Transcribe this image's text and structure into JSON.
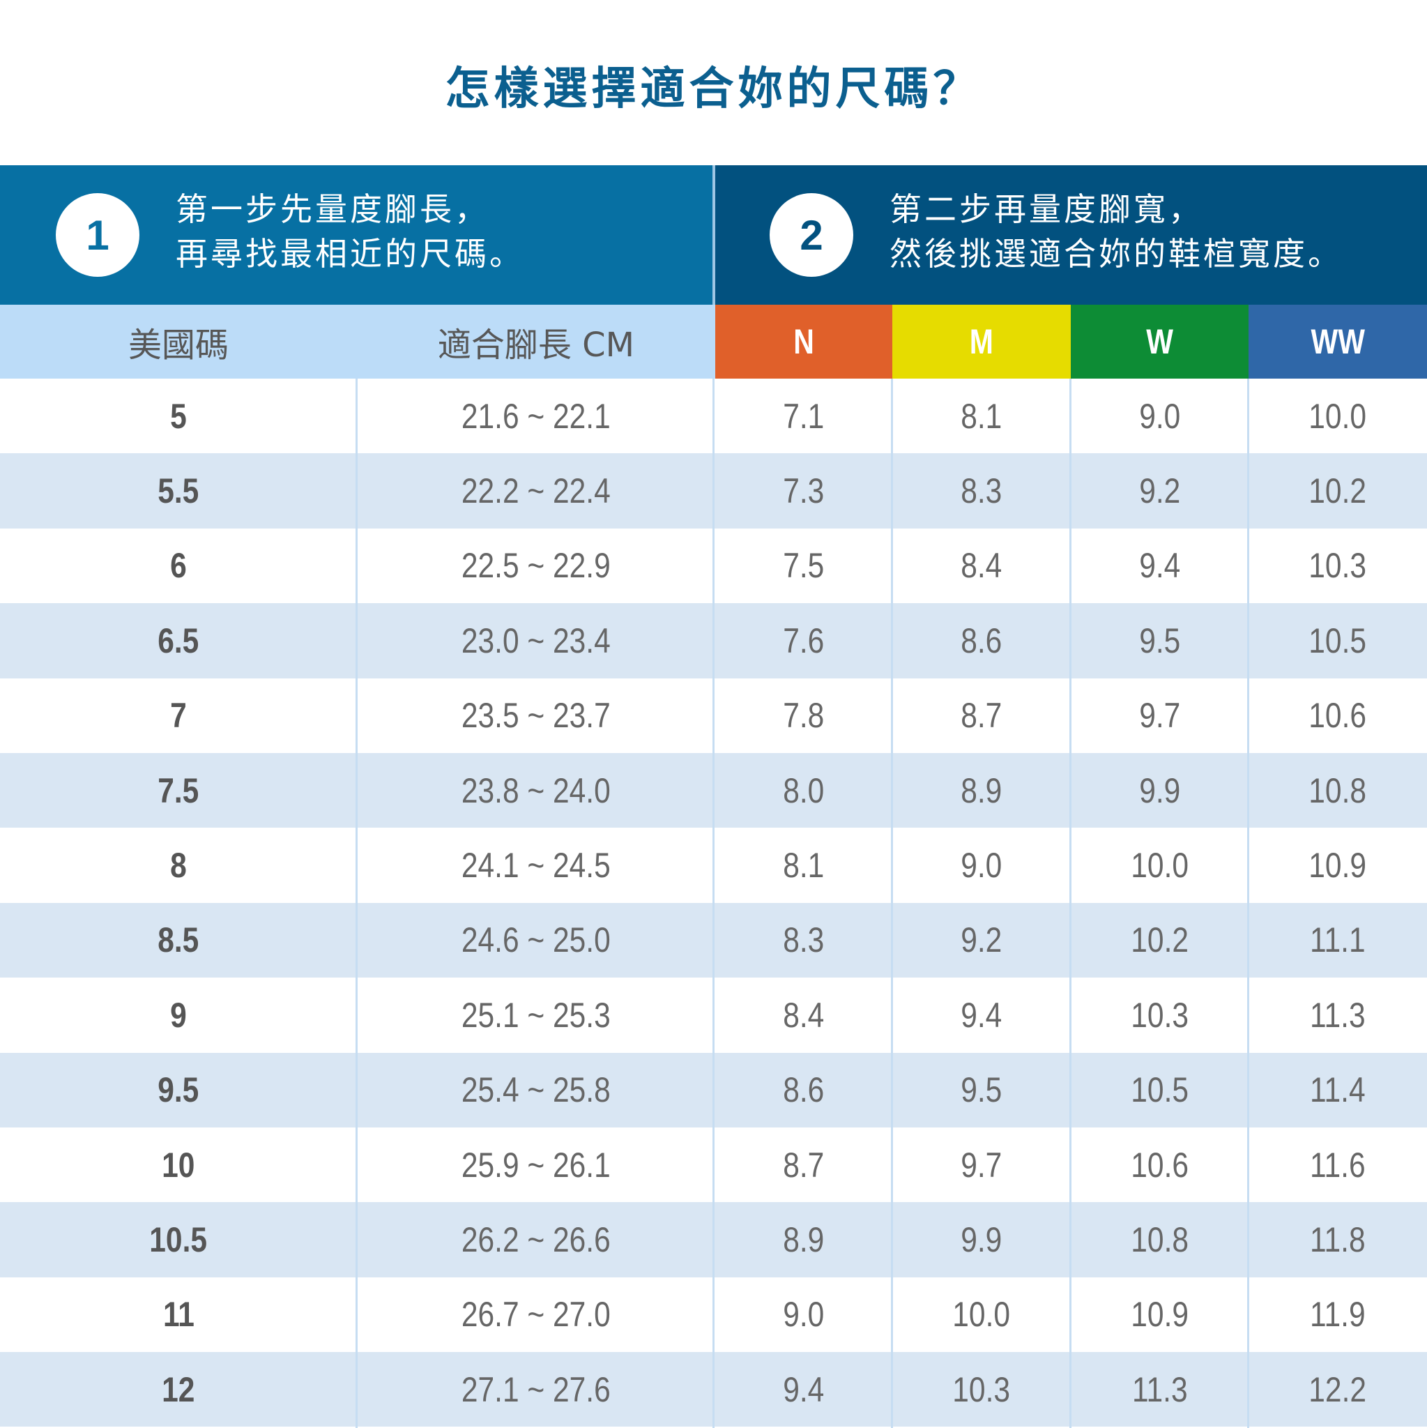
{
  "title": "怎樣選擇適合妳的尺碼？",
  "step1": {
    "number": "1",
    "line1": "第一步先量度腳長，",
    "line2": "再尋找最相近的尺碼。"
  },
  "step2": {
    "number": "2",
    "line1": "第二步再量度腳寬，",
    "line2": "然後挑選適合妳的鞋楦寬度。"
  },
  "headers": {
    "us_size": "美國碼",
    "foot_length": "適合腳長 CM",
    "widths": [
      {
        "label": "N",
        "color": "#e0602a"
      },
      {
        "label": "M",
        "color": "#e6dc00"
      },
      {
        "label": "W",
        "color": "#0d8c35"
      },
      {
        "label": "WW",
        "color": "#2f67a8"
      }
    ]
  },
  "rows": [
    {
      "size": "5",
      "length": "21.6 ~ 22.1",
      "n": "7.1",
      "m": "8.1",
      "w": "9.0",
      "ww": "10.0"
    },
    {
      "size": "5.5",
      "length": "22.2 ~ 22.4",
      "n": "7.3",
      "m": "8.3",
      "w": "9.2",
      "ww": "10.2"
    },
    {
      "size": "6",
      "length": "22.5 ~ 22.9",
      "n": "7.5",
      "m": "8.4",
      "w": "9.4",
      "ww": "10.3"
    },
    {
      "size": "6.5",
      "length": "23.0 ~ 23.4",
      "n": "7.6",
      "m": "8.6",
      "w": "9.5",
      "ww": "10.5"
    },
    {
      "size": "7",
      "length": "23.5 ~ 23.7",
      "n": "7.8",
      "m": "8.7",
      "w": "9.7",
      "ww": "10.6"
    },
    {
      "size": "7.5",
      "length": "23.8 ~ 24.0",
      "n": "8.0",
      "m": "8.9",
      "w": "9.9",
      "ww": "10.8"
    },
    {
      "size": "8",
      "length": "24.1 ~ 24.5",
      "n": "8.1",
      "m": "9.0",
      "w": "10.0",
      "ww": "10.9"
    },
    {
      "size": "8.5",
      "length": "24.6 ~ 25.0",
      "n": "8.3",
      "m": "9.2",
      "w": "10.2",
      "ww": "11.1"
    },
    {
      "size": "9",
      "length": "25.1 ~ 25.3",
      "n": "8.4",
      "m": "9.4",
      "w": "10.3",
      "ww": "11.3"
    },
    {
      "size": "9.5",
      "length": "25.4 ~ 25.8",
      "n": "8.6",
      "m": "9.5",
      "w": "10.5",
      "ww": "11.4"
    },
    {
      "size": "10",
      "length": "25.9 ~ 26.1",
      "n": "8.7",
      "m": "9.7",
      "w": "10.6",
      "ww": "11.6"
    },
    {
      "size": "10.5",
      "length": "26.2 ~ 26.6",
      "n": "8.9",
      "m": "9.9",
      "w": "10.8",
      "ww": "11.8"
    },
    {
      "size": "11",
      "length": "26.7 ~ 27.0",
      "n": "9.0",
      "m": "10.0",
      "w": "10.9",
      "ww": "11.9"
    },
    {
      "size": "12",
      "length": "27.1 ~ 27.6",
      "n": "9.4",
      "m": "10.3",
      "w": "11.3",
      "ww": "12.2"
    }
  ]
}
